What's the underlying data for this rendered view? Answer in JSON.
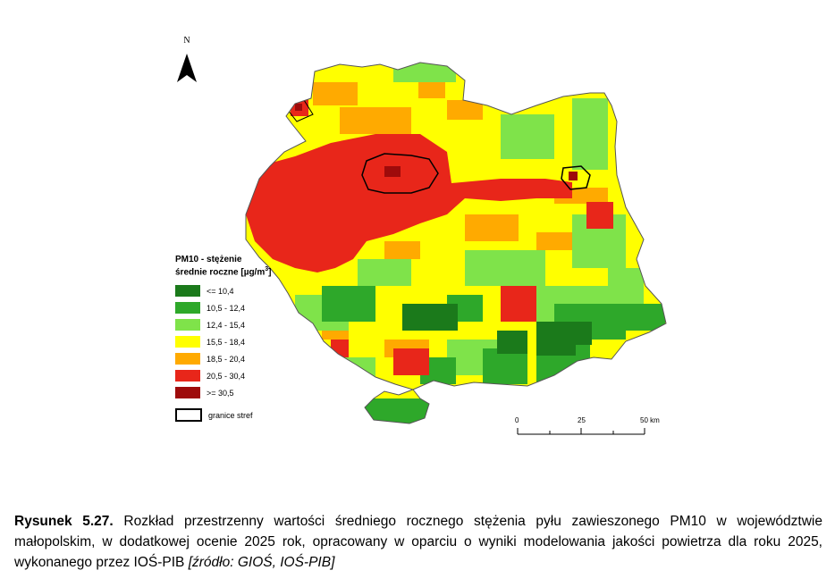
{
  "map": {
    "north_label": "N",
    "legend": {
      "title_line1": "PM10 - stężenie",
      "title_line2_prefix": "średnie roczne [µg/m",
      "title_line2_sup": "3",
      "title_line2_suffix": "]",
      "classes": [
        {
          "label": "<= 10,4",
          "color": "#1b7a1b"
        },
        {
          "label": "10,5 - 12,4",
          "color": "#2ea82a"
        },
        {
          "label": "12,4 - 15,4",
          "color": "#7fe34a"
        },
        {
          "label": "15,5 - 18,4",
          "color": "#ffff00"
        },
        {
          "label": "18,5 - 20,4",
          "color": "#ffaa00"
        },
        {
          "label": "20,5 - 30,4",
          "color": "#e8261a"
        },
        {
          "label": ">= 30,5",
          "color": "#9e0b0b"
        }
      ],
      "border_label": "granice stref"
    },
    "scalebar": {
      "labels": [
        "0",
        "25",
        "50 km"
      ]
    }
  },
  "caption": {
    "label": "Rysunek 5.27.",
    "text": " Rozkład przestrzenny wartości średniego rocznego stężenia pyłu zawieszonego PM10 w województwie małopolskim, w dodatkowej ocenie 2025 rok, opracowany w oparciu o wyniki modelowania jakości powietrza dla roku 2025, wykonanego przez IOŚ-PIB ",
    "source": "[źródło: GIOŚ, IOŚ-PIB]"
  }
}
